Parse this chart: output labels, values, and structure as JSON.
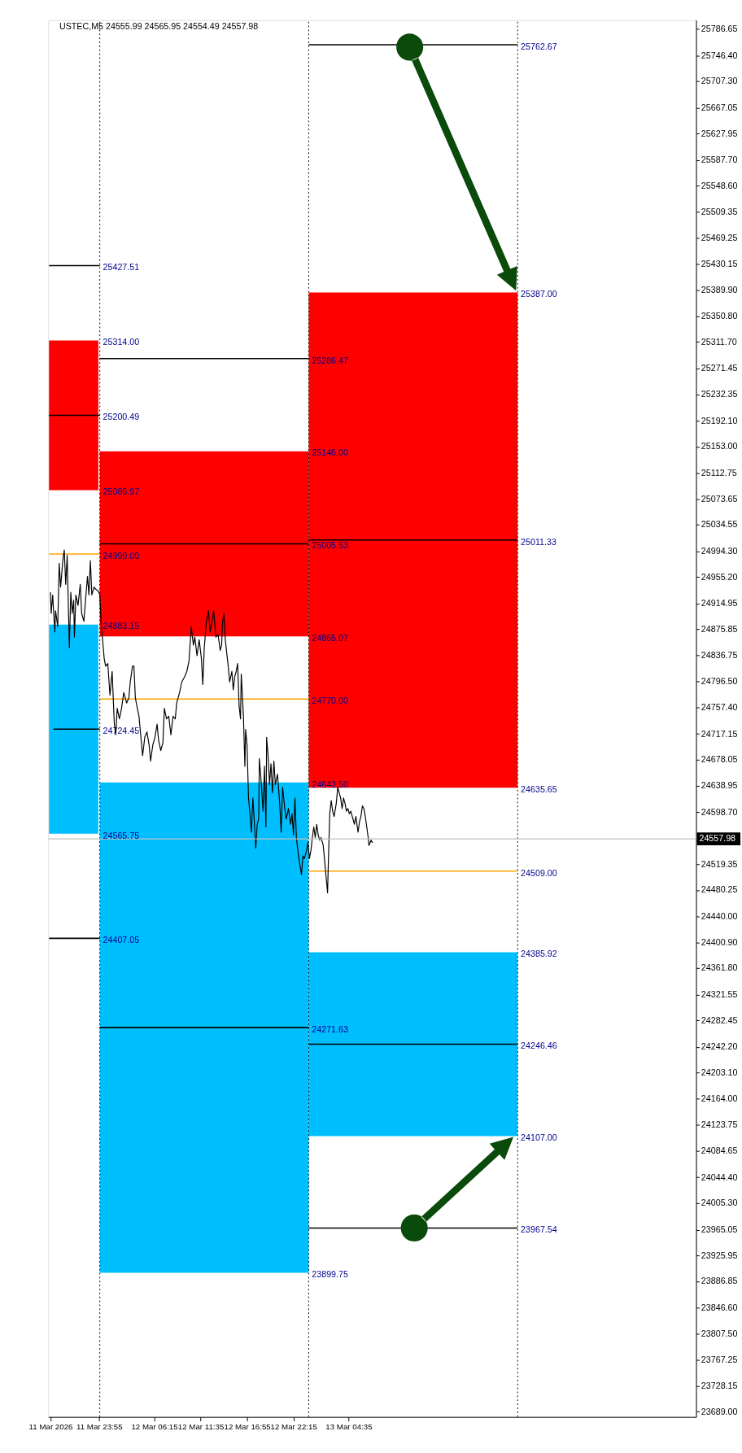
{
  "chart_data": {
    "type": "line",
    "title": "USTEC,M5 24555.99 24565.95 24554.49 24557.98",
    "series": [
      {
        "type": "line",
        "x": [
          "2026-03-11T18:10",
          "2026-03-11T23:50"
        ],
        "values": [
          null,
          null
        ],
        "lower": [
          25086.97,
          25086.97
        ],
        "upper": [
          25314.0,
          25314.0
        ],
        "color": "#ff0000"
      },
      {
        "type": "line",
        "x": [
          "2026-03-11T18:10",
          "2026-03-11T23:50"
        ],
        "values": [
          null,
          null
        ],
        "lower": [
          24565.75,
          24565.75
        ],
        "upper": [
          24883.15,
          24883.15
        ],
        "color": "#00bfff"
      },
      {
        "type": "line",
        "x": [
          "2026-03-12T00:00",
          "2026-03-13T00:00"
        ],
        "values": [
          null,
          null
        ],
        "lower": [
          24865.07,
          24865.07
        ],
        "upper": [
          25146.0,
          25146.0
        ],
        "color": "#ff0000"
      },
      {
        "type": "line",
        "x": [
          "2026-03-12T00:00",
          "2026-03-13T00:00"
        ],
        "values": [
          null,
          null
        ],
        "lower": [
          23899.75,
          23899.75
        ],
        "upper": [
          24643.5,
          24643.5
        ],
        "color": "#00bfff"
      },
      {
        "type": "line",
        "x": [
          "2026-03-13T00:00",
          "2026-03-14T00:00"
        ],
        "values": [
          null,
          null
        ],
        "lower": [
          24635.65,
          24635.65
        ],
        "upper": [
          25387.0,
          25387.0
        ],
        "color": "#ff0000"
      },
      {
        "type": "line",
        "x": [
          "2026-03-13T00:00",
          "2026-03-14T00:00"
        ],
        "values": [
          null,
          null
        ],
        "lower": [
          24107.0,
          24107.0
        ],
        "upper": [
          24385.92,
          24385.92
        ],
        "color": "#00bfff"
      },
      {
        "type": "line",
        "name": "25427.51",
        "x": [
          "2026-03-11T18:10",
          "2026-03-12T00:00"
        ],
        "values": [
          25427.51,
          25427.51
        ],
        "color": "#000000"
      },
      {
        "type": "line",
        "name": "25200.49",
        "x": [
          "2026-03-11T18:10",
          "2026-03-12T00:00"
        ],
        "values": [
          25200.49,
          25200.49
        ],
        "color": "#000000"
      },
      {
        "type": "line",
        "name": "24990.00",
        "x": [
          "2026-03-11T18:10",
          "2026-03-12T00:00"
        ],
        "values": [
          24990.0,
          24990.0
        ],
        "color": "#ffa500"
      },
      {
        "type": "line",
        "name": "24724.45",
        "x": [
          "2026-03-11T18:40",
          "2026-03-12T00:00"
        ],
        "values": [
          24724.45,
          24724.45
        ],
        "color": "#000000"
      },
      {
        "type": "line",
        "name": "24407.05",
        "x": [
          "2026-03-11T18:10",
          "2026-03-12T00:00"
        ],
        "values": [
          24407.05,
          24407.05
        ],
        "color": "#000000"
      },
      {
        "type": "line",
        "name": "25286.47",
        "x": [
          "2026-03-12T00:00",
          "2026-03-13T00:00"
        ],
        "values": [
          25286.47,
          25286.47
        ],
        "color": "#000000"
      },
      {
        "type": "line",
        "name": "25005.53",
        "x": [
          "2026-03-12T00:00",
          "2026-03-13T00:00"
        ],
        "values": [
          25005.53,
          25005.53
        ],
        "color": "#000000"
      },
      {
        "type": "line",
        "name": "24770.00",
        "x": [
          "2026-03-12T00:00",
          "2026-03-13T00:00"
        ],
        "values": [
          24770.0,
          24770.0
        ],
        "color": "#ffa500"
      },
      {
        "type": "line",
        "name": "24271.63",
        "x": [
          "2026-03-12T00:00",
          "2026-03-13T00:00"
        ],
        "values": [
          24271.63,
          24271.63
        ],
        "color": "#000000"
      },
      {
        "type": "line",
        "name": "25762.67",
        "x": [
          "2026-03-13T00:00",
          "2026-03-14T00:00"
        ],
        "values": [
          25762.67,
          25762.67
        ],
        "color": "#000000"
      },
      {
        "type": "line",
        "name": "25011.33",
        "x": [
          "2026-03-13T00:00",
          "2026-03-14T00:00"
        ],
        "values": [
          25011.33,
          25011.33
        ],
        "color": "#000000"
      },
      {
        "type": "line",
        "name": "24509.00",
        "x": [
          "2026-03-13T00:00",
          "2026-03-14T00:00"
        ],
        "values": [
          24509.0,
          24509.0
        ],
        "color": "#ffa500"
      },
      {
        "type": "line",
        "name": "24246.46",
        "x": [
          "2026-03-13T00:00",
          "2026-03-14T00:00"
        ],
        "values": [
          24246.46,
          24246.46
        ],
        "color": "#000000"
      },
      {
        "type": "line",
        "name": "23967.54",
        "x": [
          "2026-03-13T00:00",
          "2026-03-14T00:00"
        ],
        "values": [
          23967.54,
          23967.54
        ],
        "color": "#000000"
      },
      {
        "color": "#000000",
        "x": [
          "2026-03-11T18:20",
          "2026-03-11T18:25",
          "2026-03-11T18:35",
          "2026-03-11T18:50",
          "2026-03-11T18:55",
          "2026-03-11T19:10",
          "2026-03-11T19:20",
          "2026-03-11T19:30",
          "2026-03-11T19:45",
          "2026-03-11T19:55",
          "2026-03-11T20:05",
          "2026-03-11T20:15",
          "2026-03-11T20:30",
          "2026-03-11T20:40",
          "2026-03-11T20:50",
          "2026-03-11T21:00",
          "2026-03-11T21:05",
          "2026-03-11T21:15",
          "2026-03-11T21:30",
          "2026-03-11T21:45",
          "2026-03-11T21:55",
          "2026-03-11T22:10",
          "2026-03-11T22:20",
          "2026-03-11T22:35",
          "2026-03-11T22:45",
          "2026-03-11T22:55",
          "2026-03-11T23:05",
          "2026-03-11T23:20",
          "2026-03-11T23:35",
          "2026-03-11T23:50",
          "2026-03-12T00:00",
          "2026-03-12T00:10",
          "2026-03-12T00:30",
          "2026-03-12T00:40",
          "2026-03-12T00:55",
          "2026-03-12T01:10",
          "2026-03-12T01:25",
          "2026-03-12T01:40",
          "2026-03-12T01:50",
          "2026-03-12T02:00",
          "2026-03-12T02:15",
          "2026-03-12T02:30",
          "2026-03-12T02:45",
          "2026-03-12T03:05",
          "2026-03-12T03:20",
          "2026-03-12T03:30",
          "2026-03-12T03:45",
          "2026-03-12T03:55",
          "2026-03-12T04:05",
          "2026-03-12T04:15",
          "2026-03-12T04:30",
          "2026-03-12T04:45",
          "2026-03-12T04:55",
          "2026-03-12T05:10",
          "2026-03-12T05:25",
          "2026-03-12T05:40",
          "2026-03-12T05:50",
          "2026-03-12T06:05",
          "2026-03-12T06:20",
          "2026-03-12T06:35",
          "2026-03-12T06:45",
          "2026-03-12T07:00",
          "2026-03-12T07:15",
          "2026-03-12T07:25",
          "2026-03-12T07:40",
          "2026-03-12T07:55",
          "2026-03-12T08:10",
          "2026-03-12T08:25",
          "2026-03-12T08:40",
          "2026-03-12T08:50",
          "2026-03-12T09:10",
          "2026-03-12T09:25",
          "2026-03-12T09:45",
          "2026-03-12T10:00",
          "2026-03-12T10:15",
          "2026-03-12T10:30",
          "2026-03-12T10:45",
          "2026-03-12T10:55",
          "2026-03-12T11:10",
          "2026-03-12T11:25",
          "2026-03-12T11:40",
          "2026-03-12T11:50",
          "2026-03-12T12:00",
          "2026-03-12T12:15",
          "2026-03-12T12:30",
          "2026-03-12T12:40",
          "2026-03-12T12:50",
          "2026-03-12T13:05",
          "2026-03-12T13:20",
          "2026-03-12T13:35",
          "2026-03-12T13:50",
          "2026-03-12T14:00",
          "2026-03-12T14:05",
          "2026-03-12T14:15",
          "2026-03-12T14:25",
          "2026-03-12T14:35",
          "2026-03-12T14:45",
          "2026-03-12T14:55",
          "2026-03-12T15:10",
          "2026-03-12T15:20",
          "2026-03-12T15:30",
          "2026-03-12T15:40",
          "2026-03-12T15:50",
          "2026-03-12T16:00",
          "2026-03-12T16:10",
          "2026-03-12T16:15",
          "2026-03-12T16:30",
          "2026-03-12T16:40",
          "2026-03-12T16:45",
          "2026-03-12T16:55",
          "2026-03-12T17:05",
          "2026-03-12T17:15",
          "2026-03-12T17:25",
          "2026-03-12T17:35",
          "2026-03-12T17:45",
          "2026-03-12T17:55",
          "2026-03-12T18:05",
          "2026-03-12T18:15",
          "2026-03-12T18:20",
          "2026-03-12T18:35",
          "2026-03-12T18:45",
          "2026-03-12T18:55",
          "2026-03-12T19:05",
          "2026-03-12T19:10",
          "2026-03-12T19:20",
          "2026-03-12T19:30",
          "2026-03-12T19:40",
          "2026-03-12T19:50",
          "2026-03-12T20:00",
          "2026-03-12T20:10",
          "2026-03-12T20:25",
          "2026-03-12T20:40",
          "2026-03-12T20:50",
          "2026-03-12T21:00",
          "2026-03-12T21:15",
          "2026-03-12T21:25",
          "2026-03-12T21:40",
          "2026-03-12T21:55",
          "2026-03-12T22:05",
          "2026-03-12T22:15",
          "2026-03-12T22:25",
          "2026-03-12T22:35",
          "2026-03-12T22:45",
          "2026-03-12T22:55",
          "2026-03-12T23:10",
          "2026-03-12T23:20",
          "2026-03-12T23:30",
          "2026-03-12T23:45",
          "2026-03-12T23:55",
          "2026-03-13T00:05",
          "2026-03-13T00:15",
          "2026-03-13T00:25",
          "2026-03-13T00:35",
          "2026-03-13T00:45",
          "2026-03-13T00:55",
          "2026-03-13T01:05",
          "2026-03-13T01:15",
          "2026-03-13T01:25",
          "2026-03-13T01:40",
          "2026-03-13T01:50",
          "2026-03-13T02:00",
          "2026-03-13T02:10",
          "2026-03-13T02:15",
          "2026-03-13T02:25",
          "2026-03-13T02:35",
          "2026-03-13T02:45",
          "2026-03-13T02:55",
          "2026-03-13T03:10",
          "2026-03-13T03:20",
          "2026-03-13T03:30",
          "2026-03-13T03:40",
          "2026-03-13T03:50",
          "2026-03-13T04:00",
          "2026-03-13T04:10",
          "2026-03-13T04:20",
          "2026-03-13T04:30",
          "2026-03-13T04:40",
          "2026-03-13T04:50",
          "2026-03-13T05:05",
          "2026-03-13T05:15",
          "2026-03-13T05:25",
          "2026-03-13T05:40",
          "2026-03-13T05:50",
          "2026-03-13T06:00",
          "2026-03-13T06:10",
          "2026-03-13T06:20",
          "2026-03-13T06:30",
          "2026-03-13T06:40",
          "2026-03-13T06:50",
          "2026-03-13T06:55",
          "2026-03-13T07:10",
          "2026-03-13T07:20"
        ],
        "values": [
          24932,
          24900,
          24928,
          24872,
          24904,
          24880,
          24976,
          24940,
          24980,
          24996,
          24944,
          24988,
          24848,
          24932,
          24900,
          24920,
          24864,
          24928,
          24912,
          24944,
          24900,
          24888,
          24916,
          24956,
          24928,
          24980,
          24928,
          24940,
          24936,
          24934,
          24928,
          24884,
          24832,
          24820,
          24824,
          24776,
          24812,
          24732,
          24716,
          24756,
          24740,
          24756,
          24780,
          24764,
          24772,
          24796,
          24820,
          24820,
          24772,
          24760,
          24744,
          24708,
          24684,
          24712,
          24720,
          24700,
          24676,
          24700,
          24712,
          24732,
          24708,
          24692,
          24704,
          24756,
          24740,
          24744,
          24716,
          24744,
          24740,
          24764,
          24780,
          24796,
          24804,
          24812,
          24828,
          24880,
          24852,
          24864,
          24836,
          24860,
          24832,
          24792,
          24848,
          24888,
          24904,
          24872,
          24884,
          24904,
          24864,
          24868,
          24844,
          24852,
          24884,
          24900,
          24860,
          24840,
          24820,
          24796,
          24812,
          24784,
          24804,
          24812,
          24824,
          24760,
          24740,
          24808,
          24744,
          24668,
          24724,
          24700,
          24620,
          24596,
          24568,
          24620,
          24584,
          24544,
          24580,
          24588,
          24680,
          24636,
          24600,
          24668,
          24576,
          24712,
          24684,
          24640,
          24672,
          24628,
          24676,
          24640,
          24656,
          24612,
          24568,
          24636,
          24604,
          24588,
          24604,
          24580,
          24596,
          24564,
          24620,
          24560,
          24540,
          24524,
          24504,
          24532,
          24528,
          24540,
          24552,
          24528,
          24540,
          24560,
          24576,
          24560,
          24580,
          24564,
          24556,
          24560,
          24548,
          24524,
          24500,
          24476,
          24520,
          24596,
          24616,
          24600,
          24592,
          24612,
          24636,
          24628,
          24620,
          24604,
          24620,
          24612,
          24600,
          24604,
          24596,
          24600,
          24588,
          24580,
          24592,
          24568,
          24584,
          24592,
          24608,
          24604,
          24592,
          24576,
          24560,
          24548,
          24556,
          24552
        ]
      }
    ],
    "xlim": [
      "2026-03-11T18:05",
      "2026-03-14T20:30"
    ],
    "xticks": [
      {
        "value": "2026-03-11T18:20",
        "label": "11 Mar 2026"
      },
      {
        "value": "2026-03-11T23:55",
        "label": "11 Mar 23:55"
      },
      {
        "value": "2026-03-12T06:15",
        "label": "12 Mar 06:15"
      },
      {
        "value": "2026-03-12T11:35",
        "label": "12 Mar 11:35"
      },
      {
        "value": "2026-03-12T16:55",
        "label": "12 Mar 16:55"
      },
      {
        "value": "2026-03-12T22:15",
        "label": "12 Mar 22:15"
      },
      {
        "value": "2026-03-13T04:35",
        "label": "13 Mar 04:35"
      }
    ],
    "ylim": [
      23681,
      25800
    ],
    "yticks": [
      25786.65,
      {
        "value": 25746.4,
        "label": "25746.40"
      },
      {
        "value": 25707.3,
        "label": "25707.30"
      },
      25667.05,
      25627.95,
      {
        "value": 25587.7,
        "label": "25587.70"
      },
      {
        "value": 25548.6,
        "label": "25548.60"
      },
      25509.35,
      25469.25,
      25430.15,
      {
        "value": 25389.9,
        "label": "25389.90"
      },
      {
        "value": 25350.8,
        "label": "25350.80"
      },
      {
        "value": 25311.7,
        "label": "25311.70"
      },
      25271.45,
      25232.35,
      {
        "value": 25192.1,
        "label": "25192.10"
      },
      {
        "value": 25153,
        "label": "25153.00"
      },
      25112.75,
      25073.65,
      25034.55,
      {
        "value": 24994.3,
        "label": "24994.30"
      },
      {
        "value": 24955.2,
        "label": "24955.20"
      },
      24914.95,
      24875.85,
      24836.75,
      {
        "value": 24796.5,
        "label": "24796.50"
      },
      {
        "value": 24757.4,
        "label": "24757.40"
      },
      24717.15,
      24678.05,
      24638.95,
      {
        "value": 24598.7,
        "label": "24598.70"
      },
      24519.35,
      24480.25,
      {
        "value": 24440,
        "label": "24440.00"
      },
      {
        "value": 24400.9,
        "label": "24400.90"
      },
      {
        "value": 24361.8,
        "label": "24361.80"
      },
      24321.55,
      24282.45,
      {
        "value": 24242.2,
        "label": "24242.20"
      },
      {
        "value": 24203.1,
        "label": "24203.10"
      },
      {
        "value": 24164,
        "label": "24164.00"
      },
      24123.75,
      24084.65,
      {
        "value": 24044.4,
        "label": "24044.40"
      },
      {
        "value": 24005.3,
        "label": "24005.30"
      },
      23965.05,
      23925.95,
      23886.85,
      {
        "value": 23846.6,
        "label": "23846.60"
      },
      {
        "value": 23807.5,
        "label": "23807.50"
      },
      23767.25,
      23728.15,
      {
        "value": 23689,
        "label": "23689.00"
      }
    ],
    "ref_lines": [
      {
        "axis": "x",
        "value": "2026-03-12T00:00",
        "color": "#000000",
        "line_style": "dotted"
      },
      {
        "axis": "x",
        "value": "2026-03-13T00:00",
        "color": "#000000",
        "line_style": "dotted"
      },
      {
        "axis": "x",
        "value": "2026-03-14T00:00",
        "color": "#000000",
        "line_style": "dotted"
      },
      {
        "axis": "y",
        "value": 24557.98,
        "label": "24557.98",
        "color": "#c0c0c0"
      }
    ],
    "annotations": [
      {
        "text": "25314.00",
        "x": "2026-03-12T00:00",
        "y": 25314.0
      },
      {
        "text": "25086.97",
        "x": "2026-03-12T00:00",
        "y": 25086.97
      },
      {
        "text": "24883.15",
        "x": "2026-03-12T00:00",
        "y": 24883.15
      },
      {
        "text": "24565.75",
        "x": "2026-03-12T00:00",
        "y": 24565.75
      },
      {
        "text": "25146.00",
        "x": "2026-03-13T00:00",
        "y": 25146.0
      },
      {
        "text": "24865.07",
        "x": "2026-03-13T00:00",
        "y": 24865.07
      },
      {
        "text": "24643.50",
        "x": "2026-03-13T00:00",
        "y": 24643.5
      },
      {
        "text": "23899.75",
        "x": "2026-03-13T00:00",
        "y": 23899.75
      },
      {
        "text": "25387.00",
        "x": "2026-03-14T00:00",
        "y": 25387.0
      },
      {
        "text": "24635.65",
        "x": "2026-03-14T00:00",
        "y": 24635.65
      },
      {
        "text": "24385.92",
        "x": "2026-03-14T00:00",
        "y": 24385.92
      },
      {
        "text": "24107.00",
        "x": "2026-03-14T00:00",
        "y": 24107.0
      }
    ],
    "grid": false,
    "line_style": "solid"
  }
}
